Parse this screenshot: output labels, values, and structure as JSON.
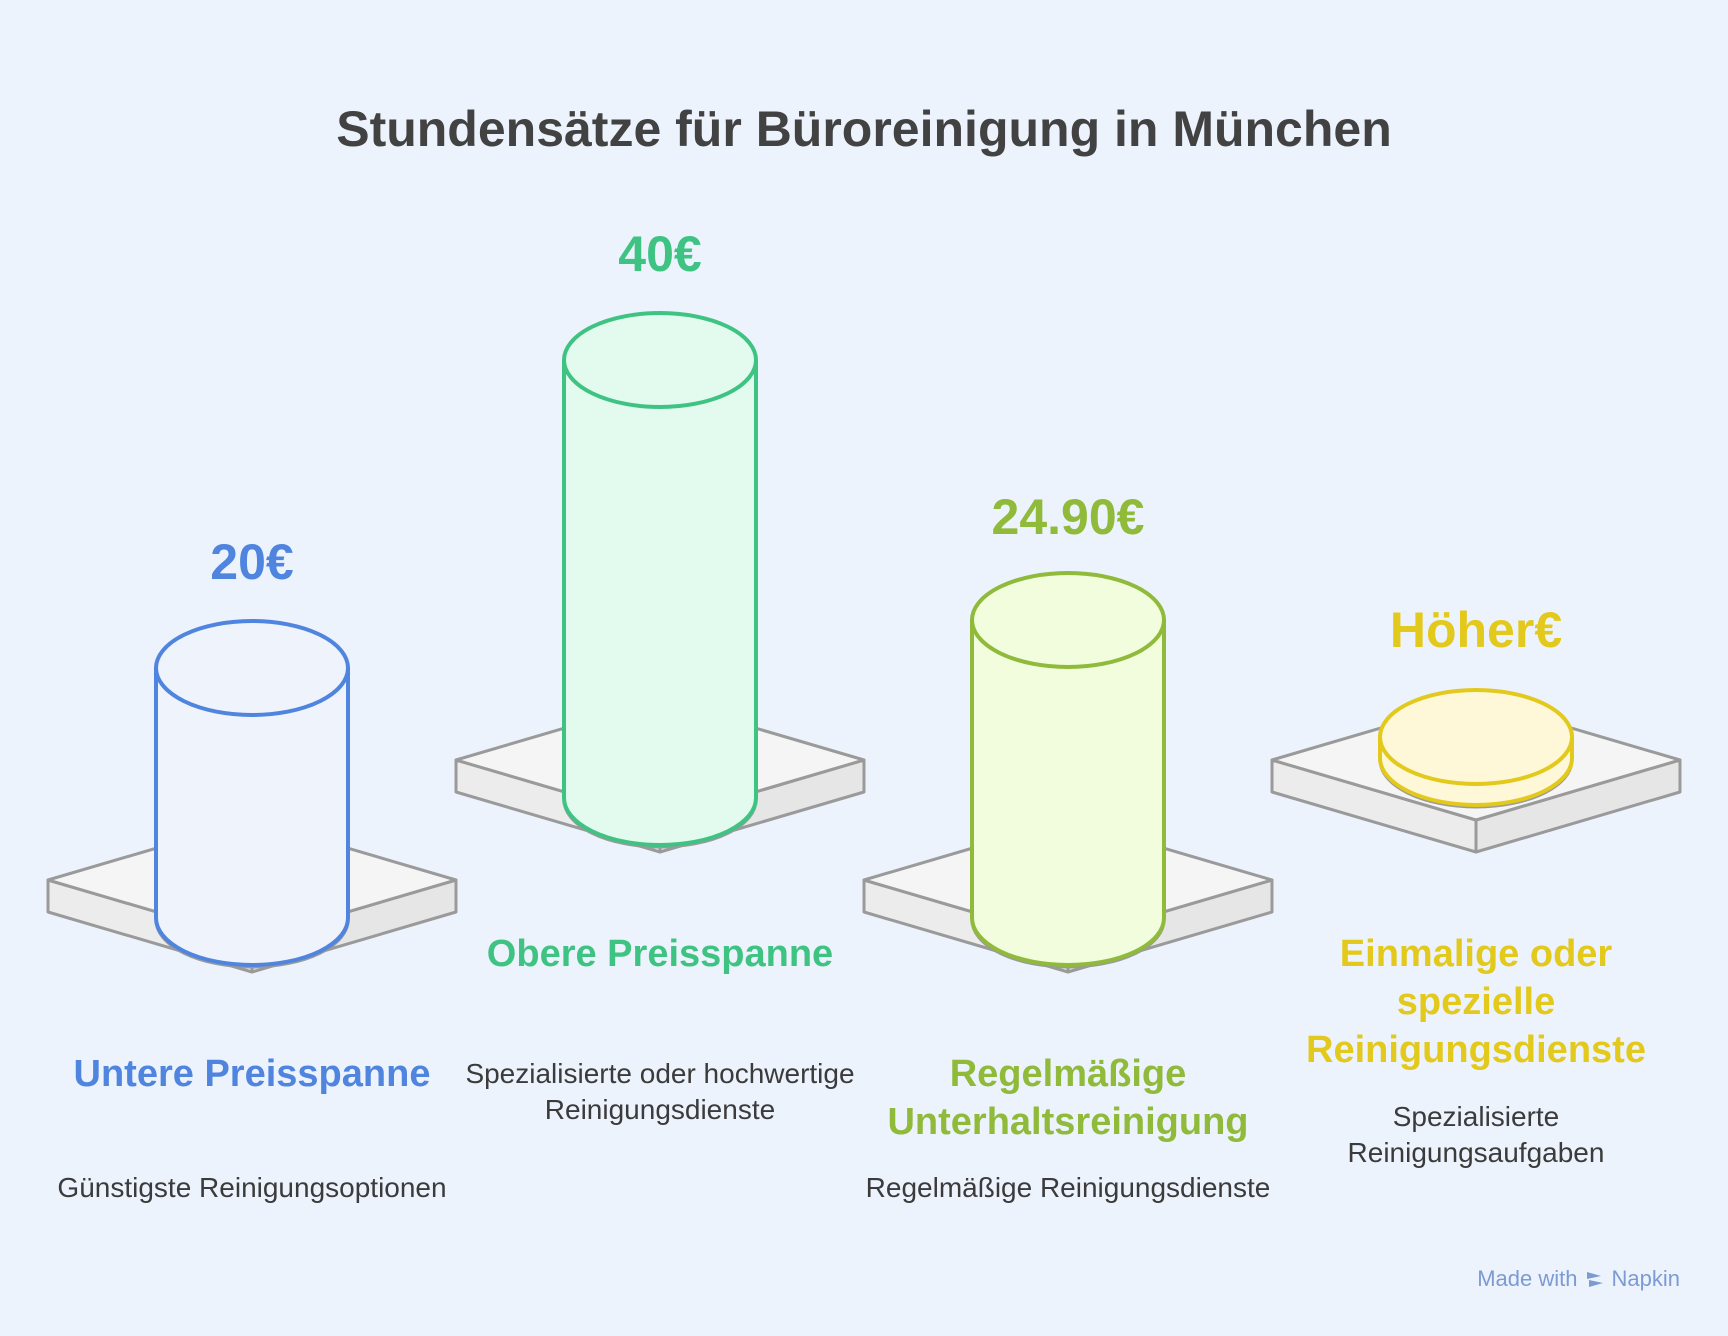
{
  "title": "Stundensätze für Büroreinigung in München",
  "colors": {
    "background": "#edf3fd",
    "blue": "#4f84df",
    "green": "#3fc383",
    "lime": "#8fba3a",
    "yellow": "#e2c91b",
    "base": "#9a9a9a"
  },
  "items": [
    {
      "value": "20€",
      "label": "Untere Preisspanne",
      "description": "Günstigste Reinigungsoptionen",
      "color": "#4f84df",
      "fill": "#eef3fc"
    },
    {
      "value": "40€",
      "label": "Obere Preisspanne",
      "description": "Spezialisierte oder hochwertige Reinigungsdienste",
      "color": "#3fc383",
      "fill": "#e2fbee"
    },
    {
      "value": "24.90€",
      "label": "Regelmäßige Unterhaltsreinigung",
      "description": "Regelmäßige Reinigungsdienste",
      "color": "#8fba3a",
      "fill": "#f1fddc"
    },
    {
      "value": "Höher€",
      "label": "Einmalige oder spezielle Reinigungsdienste",
      "description": "Spezialisierte Reinigungsaufgaben",
      "color": "#e2c91b",
      "fill": "#fff8d8"
    }
  ],
  "footer": {
    "made_with": "Made with",
    "brand": "Napkin",
    "icon": "napkin-logo-icon"
  }
}
